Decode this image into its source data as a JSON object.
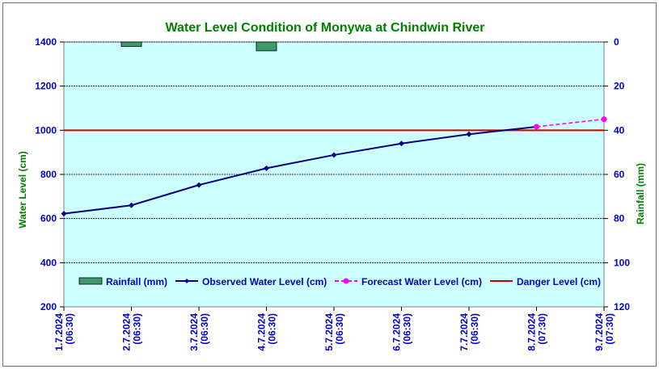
{
  "chart_data": {
    "type": "line",
    "title": "Water Level Condition of Monywa at Chindwin River",
    "ylabel": "Water Level (cm)",
    "y2label": "Rainfall (mm)",
    "ylim": [
      200,
      1400
    ],
    "y2lim": [
      0,
      120
    ],
    "yticks": [
      "1400",
      "1200",
      "1000",
      "800",
      "600",
      "400",
      "200"
    ],
    "y2ticks": [
      "0",
      "20",
      "40",
      "60",
      "80",
      "100",
      "120"
    ],
    "categories": [
      "1.7.2024 (06:30)",
      "2.7.2024 (06:30)",
      "3.7.2024 (06:30)",
      "4.7.2024 (06:30)",
      "5.7.2024 (06:30)",
      "6.7.2024 (06:30)",
      "7.7.2024 (06:30)",
      "8.7.2024 (07:30)",
      "9.7.2024 (07:30)"
    ],
    "category_lines": [
      [
        "1.7.2024",
        "(06:30)"
      ],
      [
        "2.7.2024",
        "(06:30)"
      ],
      [
        "3.7.2024",
        "(06:30)"
      ],
      [
        "4.7.2024",
        "(06:30)"
      ],
      [
        "5.7.2024",
        "(06:30)"
      ],
      [
        "6.7.2024",
        "(06:30)"
      ],
      [
        "7.7.2024",
        "(06:30)"
      ],
      [
        "8.7.2024",
        "(07:30)"
      ],
      [
        "9.7.2024",
        "(07:30)"
      ]
    ],
    "series": [
      {
        "name": "Rainfall (mm)",
        "kind": "bar",
        "axis": "right",
        "color": "#3c9c6c",
        "values": [
          null,
          2,
          null,
          4,
          null,
          null,
          null,
          null,
          null
        ]
      },
      {
        "name": "Observed Water Level (cm)",
        "kind": "line",
        "axis": "left",
        "color": "#000080",
        "values": [
          622,
          660,
          752,
          828,
          888,
          940,
          982,
          1016,
          null
        ]
      },
      {
        "name": "Forecast Water Level (cm)",
        "kind": "dashed-line",
        "axis": "left",
        "color": "#ff00ff",
        "values": [
          null,
          null,
          null,
          null,
          null,
          null,
          null,
          1016,
          1050
        ]
      },
      {
        "name": "Danger Level (cm)",
        "kind": "reference-line",
        "axis": "left",
        "color": "#cc0000",
        "value": 1000
      }
    ],
    "legend_position": "bottom-inside",
    "grid": true,
    "colors": {
      "plot_background": "#ccffff",
      "title": "#008000",
      "axis_titles": "#008000",
      "tick_labels": "#0000cc",
      "legend_text": "#0000cc"
    }
  }
}
